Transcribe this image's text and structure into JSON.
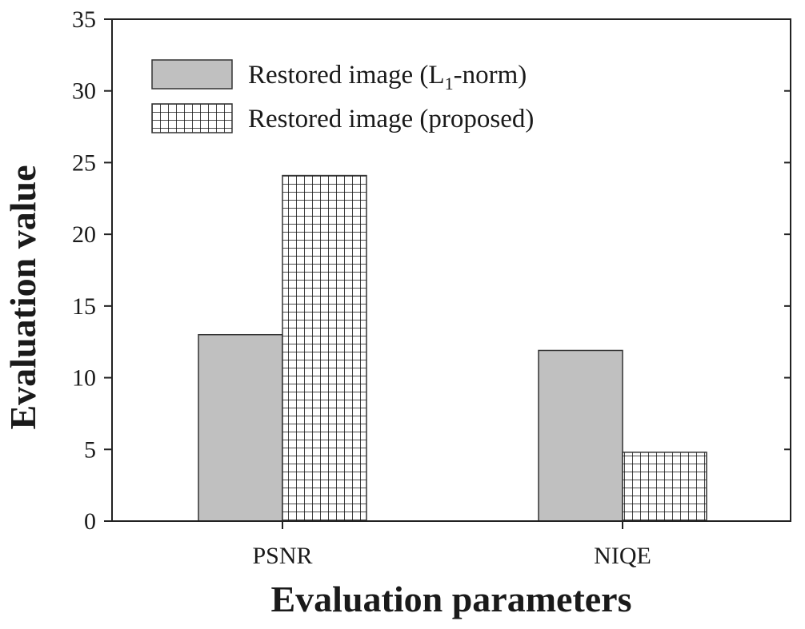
{
  "chart_data": {
    "type": "bar",
    "categories": [
      "PSNR",
      "NIQE"
    ],
    "series": [
      {
        "name_parts": [
          "Restored image (L",
          "1",
          "-norm)"
        ],
        "values": [
          13.0,
          11.9
        ],
        "fill": "#c0c0c0",
        "pattern": "solid"
      },
      {
        "name_parts": [
          "Restored image (proposed)"
        ],
        "values": [
          24.1,
          4.8
        ],
        "fill": "#ffffff",
        "pattern": "grid"
      }
    ],
    "ylim": [
      0,
      35
    ],
    "yticks": [
      "0",
      "5",
      "10",
      "15",
      "20",
      "25",
      "30",
      "35"
    ],
    "xlabel": "Evaluation parameters",
    "ylabel": "Evaluation value",
    "legend_position": "top-left",
    "grid": false
  }
}
